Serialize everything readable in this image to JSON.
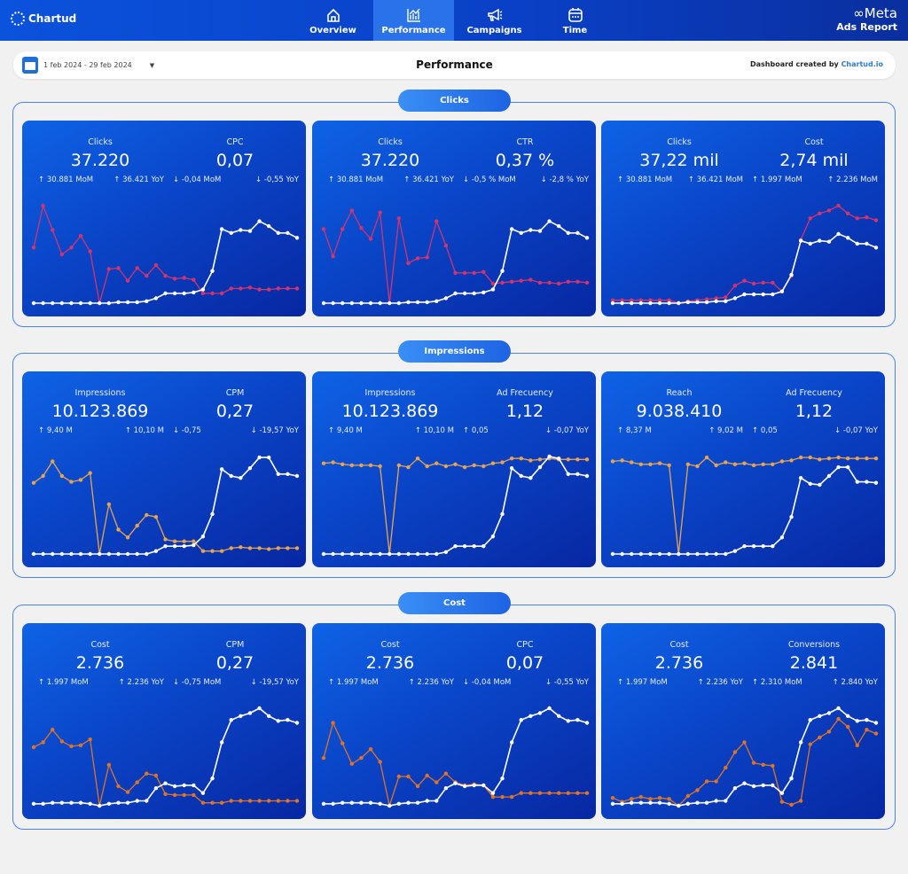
{
  "header": {
    "brand": "Chartud",
    "nav": [
      {
        "label": "Overview",
        "icon": "home-icon"
      },
      {
        "label": "Performance",
        "icon": "bar-chart-icon",
        "active": true
      },
      {
        "label": "Campaigns",
        "icon": "megaphone-icon"
      },
      {
        "label": "Time",
        "icon": "calendar-icon"
      }
    ],
    "meta_logo": "Meta",
    "meta_sub": "Ads Report"
  },
  "toolbar": {
    "date_range": "1 feb 2024 - 29 feb 2024",
    "title": "Performance",
    "credit_prefix": "Dashboard created by",
    "credit_link": "Chartud.io"
  },
  "colors": {
    "clicks_series": "#d4346c",
    "impressions_series": "#e8a44c",
    "cost_series": "#e07424",
    "primary_series": "#ffffff"
  },
  "sections": [
    {
      "title": "Clicks",
      "cards": [
        {
          "metrics": [
            {
              "label": "Clicks",
              "value": "37.220",
              "deltas": [
                {
                  "dir": "up",
                  "text": "30.881 MoM"
                },
                {
                  "dir": "up",
                  "text": "36.421 YoY"
                }
              ]
            },
            {
              "label": "CPC",
              "value": "0,07",
              "deltas": [
                {
                  "dir": "down",
                  "text": "-0,04 MoM"
                },
                {
                  "dir": "down",
                  "text": "-0,55 YoY"
                }
              ]
            }
          ],
          "white": [
            0,
            0,
            0,
            0,
            0,
            0,
            0,
            0,
            0,
            1,
            1,
            1,
            2,
            5,
            10,
            10,
            10,
            11,
            14,
            33,
            76,
            72,
            75,
            74,
            84,
            79,
            72,
            72,
            67
          ],
          "colored": [
            57,
            100,
            75,
            50,
            57,
            69,
            53,
            0,
            35,
            36,
            23,
            36,
            28,
            39,
            28,
            25,
            26,
            24,
            10,
            10,
            10,
            15,
            15,
            16,
            14,
            14,
            15,
            15,
            15
          ]
        },
        {
          "metrics": [
            {
              "label": "Clicks",
              "value": "37.220",
              "deltas": [
                {
                  "dir": "up",
                  "text": "30.881 MoM"
                },
                {
                  "dir": "up",
                  "text": "36.421 YoY"
                }
              ]
            },
            {
              "label": "CTR",
              "value": "0,37 %",
              "deltas": [
                {
                  "dir": "down",
                  "text": "-0,5 % MoM"
                },
                {
                  "dir": "down",
                  "text": "-2,8 % YoY"
                }
              ]
            }
          ],
          "white": [
            0,
            0,
            0,
            0,
            0,
            0,
            0,
            0,
            0,
            1,
            1,
            1,
            2,
            5,
            10,
            10,
            10,
            11,
            14,
            33,
            76,
            72,
            75,
            74,
            84,
            79,
            72,
            72,
            67
          ],
          "colored": [
            76,
            48,
            76,
            95,
            77,
            66,
            93,
            0,
            87,
            41,
            46,
            47,
            84,
            59,
            31,
            31,
            31,
            32,
            20,
            21,
            22,
            23,
            24,
            21,
            21,
            20,
            22,
            22,
            21
          ]
        },
        {
          "metrics": [
            {
              "label": "Clicks",
              "value": "37,22 mil",
              "deltas": [
                {
                  "dir": "up",
                  "text": "30.881 MoM"
                },
                {
                  "dir": "up",
                  "text": "36.421 MoM"
                }
              ]
            },
            {
              "label": "Cost",
              "value": "2,74 mil",
              "deltas": [
                {
                  "dir": "up",
                  "text": "1.997 MoM"
                },
                {
                  "dir": "up",
                  "text": "2.236 MoM"
                }
              ]
            }
          ],
          "white": [
            0,
            0,
            0,
            0,
            0,
            0,
            0,
            0,
            1,
            1,
            1,
            2,
            2,
            5,
            9,
            9,
            9,
            9,
            12,
            29,
            64,
            61,
            64,
            63,
            71,
            67,
            61,
            61,
            57
          ],
          "colored": [
            3,
            3,
            3,
            3,
            3,
            3,
            3,
            0,
            2,
            3,
            4,
            5,
            6,
            18,
            23,
            20,
            21,
            21,
            12,
            28,
            65,
            87,
            92,
            95,
            100,
            92,
            87,
            88,
            85
          ]
        }
      ]
    },
    {
      "title": "Impressions",
      "cards": [
        {
          "metrics": [
            {
              "label": "Impressions",
              "value": "10.123.869",
              "deltas": [
                {
                  "dir": "up",
                  "text": "9,40 M"
                },
                {
                  "dir": "up",
                  "text": "10,10 M"
                }
              ]
            },
            {
              "label": "CPM",
              "value": "0,27",
              "deltas": [
                {
                  "dir": "down",
                  "text": "-0,75"
                },
                {
                  "dir": "down",
                  "text": "-19,57 YoY"
                }
              ]
            }
          ],
          "white": [
            0,
            0,
            0,
            0,
            0,
            0,
            0,
            0,
            0,
            0,
            0,
            0,
            0,
            3,
            8,
            8,
            8,
            9,
            18,
            41,
            87,
            80,
            78,
            88,
            99,
            99,
            82,
            82,
            80
          ],
          "colored": [
            73,
            80,
            95,
            80,
            74,
            76,
            83,
            0,
            51,
            25,
            17,
            29,
            40,
            38,
            15,
            13,
            13,
            13,
            3,
            3,
            3,
            6,
            7,
            6,
            6,
            5,
            6,
            6,
            6
          ]
        },
        {
          "metrics": [
            {
              "label": "Impressions",
              "value": "10.123.869",
              "deltas": [
                {
                  "dir": "up",
                  "text": "9,40 M"
                },
                {
                  "dir": "up",
                  "text": "10,10 M"
                }
              ]
            },
            {
              "label": "Ad Frecuency",
              "value": "1,12",
              "deltas": [
                {
                  "dir": "up",
                  "text": "0,05"
                },
                {
                  "dir": "down",
                  "text": "-0,07 YoY"
                }
              ]
            }
          ],
          "white": [
            0,
            0,
            0,
            0,
            0,
            0,
            0,
            0,
            0,
            0,
            0,
            0,
            0,
            2,
            8,
            8,
            8,
            8,
            18,
            41,
            88,
            80,
            78,
            89,
            100,
            98,
            82,
            82,
            80
          ],
          "colored": [
            93,
            94,
            92,
            91,
            91,
            91,
            90,
            0,
            91,
            89,
            98,
            90,
            93,
            90,
            92,
            89,
            91,
            90,
            93,
            94,
            98,
            98,
            96,
            97,
            98,
            97,
            97,
            97,
            97
          ]
        },
        {
          "metrics": [
            {
              "label": "Reach",
              "value": "9.038.410",
              "deltas": [
                {
                  "dir": "up",
                  "text": "8,37 M"
                },
                {
                  "dir": "up",
                  "text": "9,02 M"
                }
              ]
            },
            {
              "label": "Ad Frecuency",
              "value": "1,12",
              "deltas": [
                {
                  "dir": "up",
                  "text": "0,05"
                },
                {
                  "dir": "down",
                  "text": "-0,07 YoY"
                }
              ]
            }
          ],
          "white": [
            0,
            0,
            0,
            0,
            0,
            0,
            0,
            0,
            0,
            0,
            0,
            0,
            0,
            3,
            8,
            8,
            8,
            8,
            17,
            38,
            78,
            72,
            71,
            80,
            89,
            89,
            74,
            74,
            73
          ],
          "colored": [
            95,
            96,
            94,
            92,
            92,
            93,
            91,
            0,
            92,
            90,
            99,
            91,
            94,
            92,
            93,
            91,
            92,
            92,
            95,
            96,
            99,
            99,
            97,
            98,
            99,
            98,
            98,
            98,
            98
          ]
        }
      ]
    },
    {
      "title": "Cost",
      "cards": [
        {
          "metrics": [
            {
              "label": "Cost",
              "value": "2.736",
              "deltas": [
                {
                  "dir": "up",
                  "text": "1.997 MoM"
                },
                {
                  "dir": "up",
                  "text": "2.236 YoY"
                }
              ]
            },
            {
              "label": "CPM",
              "value": "0,27",
              "deltas": [
                {
                  "dir": "down",
                  "text": "-0,75 MoM"
                },
                {
                  "dir": "down",
                  "text": "-19,57 YoY"
                }
              ]
            }
          ],
          "white": [
            2,
            2,
            3,
            3,
            3,
            3,
            2,
            0,
            2,
            3,
            3,
            5,
            5,
            18,
            23,
            20,
            21,
            21,
            13,
            28,
            65,
            88,
            92,
            95,
            100,
            92,
            87,
            88,
            85
          ],
          "colored": [
            60,
            65,
            78,
            66,
            61,
            62,
            68,
            0,
            42,
            20,
            14,
            24,
            33,
            31,
            12,
            11,
            11,
            11,
            3,
            3,
            3,
            5,
            5,
            5,
            5,
            5,
            5,
            5,
            5
          ]
        },
        {
          "metrics": [
            {
              "label": "Cost",
              "value": "2.736",
              "deltas": [
                {
                  "dir": "up",
                  "text": "1.997 MoM"
                },
                {
                  "dir": "up",
                  "text": "2.236 YoY"
                }
              ]
            },
            {
              "label": "CPC",
              "value": "0,07",
              "deltas": [
                {
                  "dir": "down",
                  "text": "-0,04 MoM"
                },
                {
                  "dir": "down",
                  "text": "-0,55 YoY"
                }
              ]
            }
          ],
          "white": [
            2,
            2,
            3,
            3,
            3,
            3,
            2,
            0,
            2,
            3,
            3,
            5,
            5,
            18,
            23,
            20,
            21,
            21,
            13,
            28,
            65,
            88,
            92,
            95,
            100,
            92,
            87,
            88,
            85
          ],
          "colored": [
            49,
            85,
            64,
            43,
            49,
            58,
            45,
            0,
            30,
            30,
            20,
            31,
            24,
            33,
            24,
            21,
            22,
            21,
            9,
            9,
            9,
            13,
            13,
            13,
            13,
            13,
            13,
            13,
            13
          ]
        },
        {
          "metrics": [
            {
              "label": "Cost",
              "value": "2.736",
              "deltas": [
                {
                  "dir": "up",
                  "text": "1.997 MoM"
                },
                {
                  "dir": "up",
                  "text": "2.236 YoY"
                }
              ]
            },
            {
              "label": "Conversions",
              "value": "2.841",
              "deltas": [
                {
                  "dir": "up",
                  "text": "2.310 MoM"
                },
                {
                  "dir": "up",
                  "text": "2.840 YoY"
                }
              ]
            }
          ],
          "white": [
            2,
            2,
            3,
            3,
            3,
            3,
            2,
            0,
            2,
            3,
            3,
            5,
            5,
            18,
            23,
            20,
            21,
            21,
            13,
            28,
            65,
            88,
            92,
            95,
            100,
            92,
            87,
            88,
            85
          ],
          "colored": [
            8,
            4,
            7,
            9,
            7,
            8,
            7,
            0,
            10,
            16,
            25,
            25,
            39,
            55,
            65,
            44,
            42,
            41,
            4,
            1,
            5,
            63,
            70,
            76,
            89,
            81,
            62,
            78,
            74
          ]
        }
      ]
    }
  ]
}
